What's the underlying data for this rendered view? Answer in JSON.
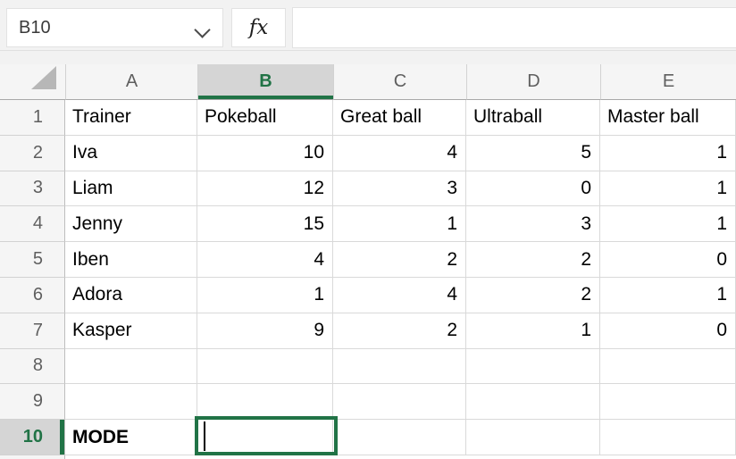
{
  "formula_bar": {
    "name_box_value": "B10",
    "fx_label": "fx",
    "formula_value": ""
  },
  "sheet": {
    "column_headers": [
      "A",
      "B",
      "C",
      "D",
      "E"
    ],
    "selected_column": "B",
    "selected_row": "10",
    "selected_cell": "B10",
    "bold_cells": [
      "A10"
    ],
    "rows": [
      {
        "num": "1",
        "cells": [
          "Trainer",
          "Pokeball",
          "Great ball",
          "Ultraball",
          "Master ball"
        ]
      },
      {
        "num": "2",
        "cells": [
          "Iva",
          "10",
          "4",
          "5",
          "1"
        ]
      },
      {
        "num": "3",
        "cells": [
          "Liam",
          "12",
          "3",
          "0",
          "1"
        ]
      },
      {
        "num": "4",
        "cells": [
          "Jenny",
          "15",
          "1",
          "3",
          "1"
        ]
      },
      {
        "num": "5",
        "cells": [
          "Iben",
          "4",
          "2",
          "2",
          "0"
        ]
      },
      {
        "num": "6",
        "cells": [
          "Adora",
          "1",
          "4",
          "2",
          "1"
        ]
      },
      {
        "num": "7",
        "cells": [
          "Kasper",
          "9",
          "2",
          "1",
          "0"
        ]
      },
      {
        "num": "8",
        "cells": [
          "",
          "",
          "",
          "",
          ""
        ]
      },
      {
        "num": "9",
        "cells": [
          "",
          "",
          "",
          "",
          ""
        ]
      },
      {
        "num": "10",
        "cells": [
          "MODE",
          "",
          "",
          "",
          ""
        ]
      }
    ]
  },
  "colors": {
    "accent_green": "#217346",
    "selected_header_bg": "#d5d5d5",
    "gridline": "#d9d9d9"
  }
}
